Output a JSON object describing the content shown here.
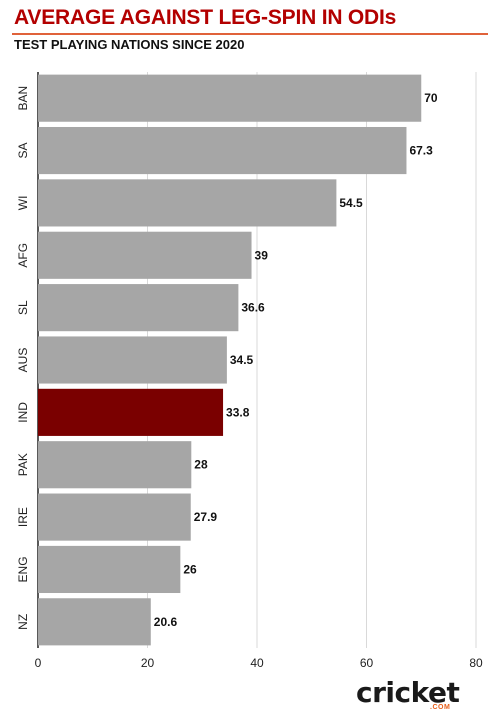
{
  "header": {
    "title": "AVERAGE AGAINST LEG-SPIN IN ODIs",
    "subtitle": "TEST PLAYING NATIONS SINCE 2020"
  },
  "logo": {
    "text": "cricket",
    "sub": ".COM"
  },
  "colors": {
    "bar": "#a6a6a6",
    "highlight": "#7a0000",
    "title": "#b30000",
    "rule": "#e0623a",
    "logo_accent": "#e8601c"
  },
  "chart_data": {
    "type": "bar",
    "orientation": "horizontal",
    "title": "AVERAGE AGAINST LEG-SPIN IN ODIs",
    "subtitle": "TEST PLAYING NATIONS SINCE 2020",
    "categories": [
      "BAN",
      "SA",
      "WI",
      "AFG",
      "SL",
      "AUS",
      "IND",
      "PAK",
      "IRE",
      "ENG",
      "NZ"
    ],
    "values": [
      70,
      67.3,
      54.5,
      39,
      36.6,
      34.5,
      33.8,
      28,
      27.9,
      26,
      20.6
    ],
    "value_labels": [
      "70",
      "67.3",
      "54.5",
      "39",
      "36.6",
      "34.5",
      "33.8",
      "28",
      "27.9",
      "26",
      "20.6"
    ],
    "highlight": "IND",
    "xlim": [
      0,
      80
    ],
    "xticks": [
      "0",
      "20",
      "40",
      "60",
      "80"
    ],
    "grid": true
  }
}
